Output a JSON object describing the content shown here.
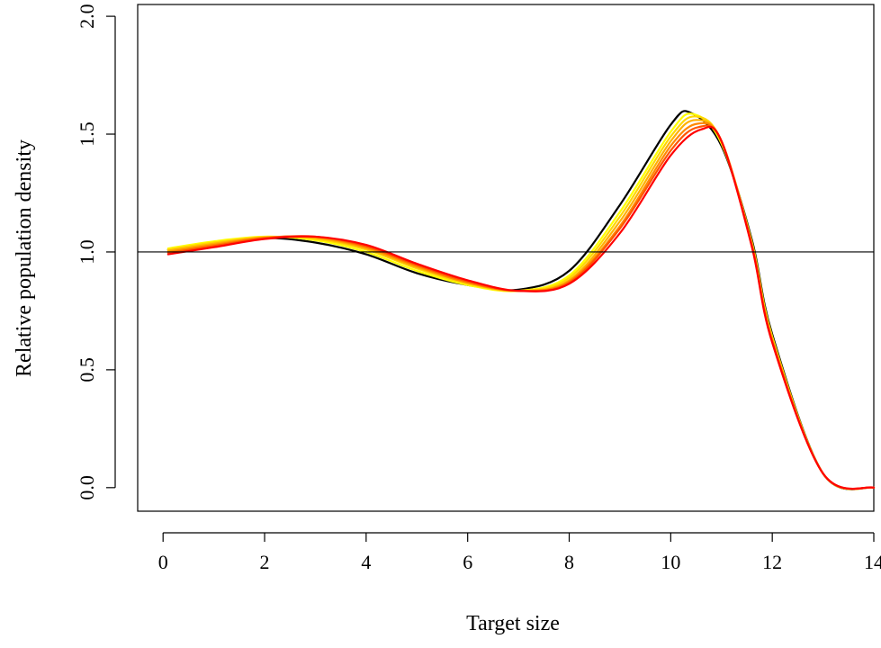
{
  "chart_data": {
    "type": "line",
    "title": "",
    "xlabel": "Target size",
    "ylabel": "Relative population density",
    "xlim": [
      -0.5,
      14
    ],
    "ylim": [
      -0.1,
      2.05
    ],
    "x_ticks": [
      0,
      2,
      4,
      6,
      8,
      10,
      12,
      14
    ],
    "x_tick_labels": [
      "0",
      "2",
      "4",
      "6",
      "8",
      "10",
      "12",
      "14"
    ],
    "y_ticks": [
      0.0,
      0.5,
      1.0,
      1.5,
      2.0
    ],
    "y_tick_labels": [
      "0.0",
      "0.5",
      "1.0",
      "1.5",
      "2.0"
    ],
    "reference_line": {
      "y": 1.0,
      "color": "#000000"
    },
    "grid": false,
    "legend": "none",
    "series": [
      {
        "color": "#000000",
        "x": [
          0.1,
          1,
          2,
          3,
          4,
          5,
          6,
          7,
          8,
          9,
          10,
          10.4,
          11,
          11.6,
          12,
          13,
          14
        ],
        "y": [
          1.01,
          1.04,
          1.06,
          1.04,
          0.99,
          0.91,
          0.86,
          0.84,
          0.92,
          1.2,
          1.54,
          1.59,
          1.45,
          1.05,
          0.65,
          0.06,
          0.0
        ]
      },
      {
        "color": "#ffff00",
        "x": [
          0.1,
          1,
          2,
          3,
          4,
          5,
          6,
          7,
          8,
          9,
          10,
          10.45,
          11,
          11.6,
          12,
          13,
          14
        ],
        "y": [
          1.015,
          1.045,
          1.065,
          1.05,
          1.0,
          0.92,
          0.86,
          0.835,
          0.9,
          1.17,
          1.51,
          1.585,
          1.46,
          1.04,
          0.64,
          0.06,
          0.0
        ]
      },
      {
        "color": "#ffd700",
        "x": [
          0.1,
          1,
          2,
          3,
          4,
          5,
          6,
          7,
          8,
          9,
          10,
          10.5,
          11,
          11.6,
          12,
          13,
          14
        ],
        "y": [
          1.01,
          1.04,
          1.063,
          1.055,
          1.01,
          0.93,
          0.865,
          0.835,
          0.89,
          1.15,
          1.49,
          1.575,
          1.47,
          1.035,
          0.635,
          0.06,
          0.0
        ]
      },
      {
        "color": "#ffb000",
        "x": [
          0.1,
          1,
          2,
          3,
          4,
          5,
          6,
          7,
          8,
          9,
          10,
          10.5,
          11,
          11.6,
          12,
          13,
          14
        ],
        "y": [
          1.005,
          1.035,
          1.062,
          1.06,
          1.015,
          0.935,
          0.87,
          0.835,
          0.88,
          1.13,
          1.47,
          1.56,
          1.47,
          1.03,
          0.63,
          0.06,
          0.0
        ]
      },
      {
        "color": "#ff8800",
        "x": [
          0.1,
          1,
          2,
          3,
          4,
          5,
          6,
          7,
          8,
          9,
          10,
          10.55,
          11,
          11.6,
          12,
          13,
          14
        ],
        "y": [
          1.0,
          1.03,
          1.06,
          1.063,
          1.02,
          0.94,
          0.87,
          0.835,
          0.875,
          1.11,
          1.45,
          1.545,
          1.47,
          1.03,
          0.625,
          0.06,
          0.0
        ]
      },
      {
        "color": "#ff5500",
        "x": [
          0.1,
          1,
          2,
          3,
          4,
          5,
          6,
          7,
          8,
          9,
          10,
          10.55,
          11,
          11.6,
          12,
          13,
          14
        ],
        "y": [
          0.995,
          1.025,
          1.058,
          1.065,
          1.025,
          0.945,
          0.875,
          0.835,
          0.87,
          1.1,
          1.43,
          1.53,
          1.47,
          1.025,
          0.62,
          0.06,
          0.0
        ]
      },
      {
        "color": "#ff0000",
        "x": [
          0.1,
          1,
          2,
          3,
          4,
          5,
          6,
          7,
          8,
          9,
          10,
          10.6,
          11,
          11.6,
          12,
          13,
          14
        ],
        "y": [
          0.99,
          1.02,
          1.055,
          1.065,
          1.03,
          0.95,
          0.88,
          0.835,
          0.865,
          1.08,
          1.41,
          1.52,
          1.47,
          1.02,
          0.615,
          0.06,
          0.0
        ]
      }
    ]
  }
}
